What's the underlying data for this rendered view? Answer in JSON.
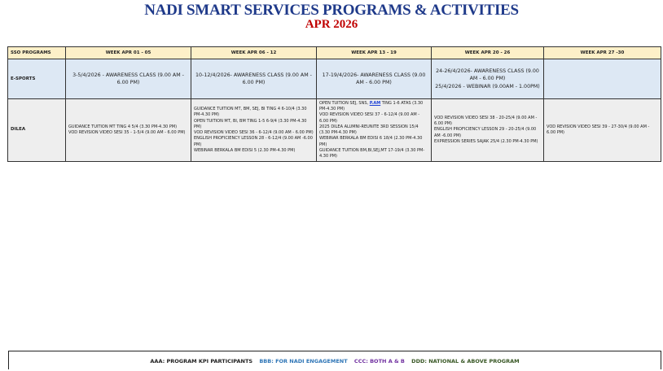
{
  "title": "NADI SMART SERVICES PROGRAMS & ACTIVITIES",
  "subtitle": "APR 2026",
  "table": {
    "headers": [
      "SSO PROGRAMS",
      "WEEK APR  01 - 05",
      "WEEK APR  06 - 12",
      "WEEK APR 13 - 19",
      "WEEK APR  20 - 26",
      "WEEK APR 27 -30"
    ],
    "rows": [
      {
        "label": "E-SPORTS",
        "cells": [
          [
            "3-5/4/2026 - AWARENESS CLASS (9.00 AM - 6.00 PM)"
          ],
          [
            "10-12/4/2026- AWARENESS CLASS (9.00 AM - 6.00 PM)"
          ],
          [
            "17-19/4/2026- AWARENESS CLASS (9.00 AM - 6.00 PM)"
          ],
          [
            "24-26/4/2026- AWARENESS CLASS (9.00 AM - 6.00 PM)",
            "25/4/2026 - WEBINAR (9.00AM - 1.00PM)"
          ],
          []
        ]
      },
      {
        "label": "DILEA",
        "cells": [
          [
            "GUIDANCE TUITION MT TING 4 5/4 (3.30 PM-4.30 PM)",
            "VOD REVISION VIDEO SESI 35 - 1-5/4 (9.00 AM - 6.00 PM)"
          ],
          [
            "GUIDANCE TUITION MT, BM, SEJ, BI TING 4 6-10/4 (3.30 PM-4.30 PM)",
            "OPEN TUITION MT, BI, BM TING 1-5 6-9/4 (3.30 PM-4.30 PM)",
            "VOD REVISION VIDEO SESI 36 - 6-12/4 (9.00 AM - 6.00 PM)",
            "ENGLISH PROFICIENCY LESSON 28 - 6-12/4 (9.00 AM -6.00 PM)",
            "WEBINAR BERKALA BM EDISI 5 (2.30 PM-4.30 PM)"
          ],
          [
            "OPEN TUITION SEJ, SNS, ",
            "VOD REVISION VIDEO SESI 37 - 6-12/4 (9.00 AM - 6.00 PM)",
            "2025 DILEA ALUMNI-REUNITE 3RD SESSION 15/4 (3.30 PM-4.30 PM)",
            "WEBINAR BERKALA BM EDISI 6 18/4 (2.30 PM-4.30 PM)",
            "GUIDANCE TUITION BM,BI,SEJ,MT 17-19/4 (3.30 PM-4.30 PM)"
          ],
          [
            "VOD REVISION VIDEO SESI 38 - 20-25/4 (9.00 AM - 6.00 PM)",
            "ENGLISH PROFICIENCY LESSON 29 - 20-25/4 (9.00 AM -6.00 PM)",
            "EXPRESSION SERIES SAJAK 25/4 (2.30 PM-4.30 PM)"
          ],
          [
            "VOD REVISION VIDEO SESI 39 - 27-30/4 (9.00 AM - 6.00 PM)"
          ]
        ]
      }
    ],
    "link_text": "P.AM",
    "link_suffix": " TING 1-6 ATAS (3.30 PM-4.30 PM)"
  },
  "legend": {
    "aaa": "AAA: PROGRAM KPI PARTICIPANTS",
    "bbb": "BBB:  FOR NADI ENGAGEMENT",
    "ccc": "CCC:  BOTH  A & B",
    "ddd": "DDD: NATIONAL & ABOVE PROGRAM",
    "colors": {
      "aaa": "#222222",
      "bbb": "#2e75b6",
      "ccc": "#7030a0",
      "ddd": "#375623"
    }
  }
}
